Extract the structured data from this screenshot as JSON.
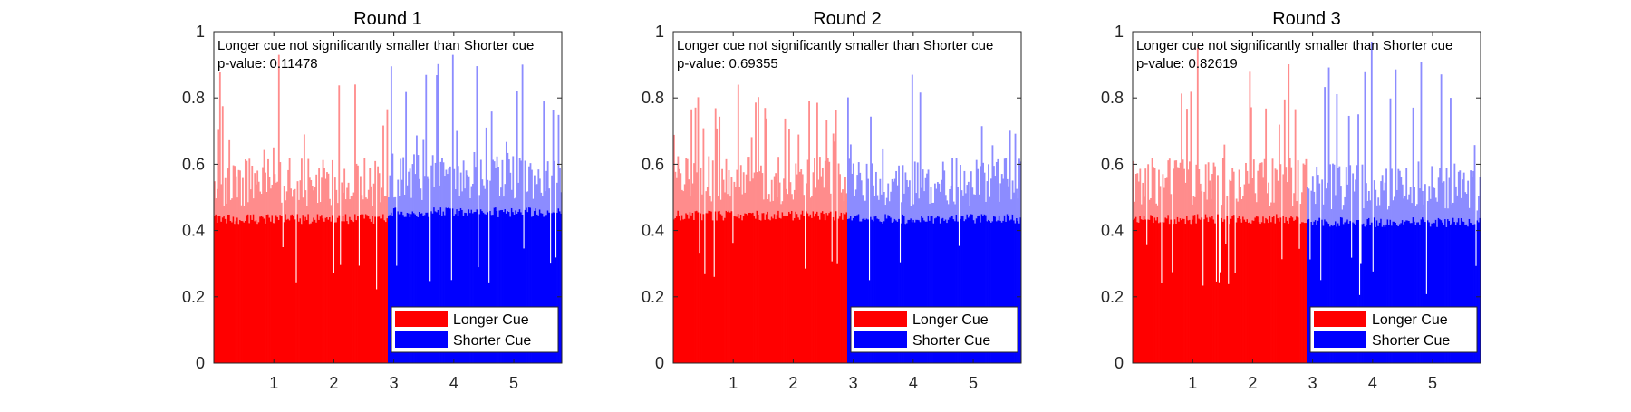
{
  "chart_data": [
    {
      "type": "bar",
      "title": "Round 1",
      "annotation": [
        "Longer cue not significantly smaller than Shorter cue",
        "p-value: 0.11478"
      ],
      "xlabel": "",
      "ylabel": "",
      "xlim": [
        0,
        5.8
      ],
      "ylim": [
        0,
        1
      ],
      "xticks": [
        "1",
        "2",
        "3",
        "4",
        "5"
      ],
      "yticks": [
        "0",
        "0.2",
        "0.4",
        "0.6",
        "0.8",
        "1"
      ],
      "grid": false,
      "legend_position": "bottom-right",
      "series": [
        {
          "name": "Longer Cue",
          "color": "#ff0000",
          "x_range": [
            0,
            2.9
          ],
          "typical": 0.56,
          "peak": 0.93
        },
        {
          "name": "Shorter Cue",
          "color": "#0000ff",
          "x_range": [
            2.9,
            5.8
          ],
          "typical": 0.58,
          "peak": 0.93
        }
      ]
    },
    {
      "type": "bar",
      "title": "Round 2",
      "annotation": [
        "Longer cue not significantly smaller than Shorter cue",
        "p-value: 0.69355"
      ],
      "xlabel": "",
      "ylabel": "",
      "xlim": [
        0,
        5.8
      ],
      "ylim": [
        0,
        1
      ],
      "xticks": [
        "1",
        "2",
        "3",
        "4",
        "5"
      ],
      "yticks": [
        "0",
        "0.2",
        "0.4",
        "0.6",
        "0.8",
        "1"
      ],
      "grid": false,
      "legend_position": "bottom-right",
      "series": [
        {
          "name": "Longer Cue",
          "color": "#ff0000",
          "x_range": [
            0,
            2.9
          ],
          "typical": 0.57,
          "peak": 0.84
        },
        {
          "name": "Shorter Cue",
          "color": "#0000ff",
          "x_range": [
            2.9,
            5.8
          ],
          "typical": 0.56,
          "peak": 0.87
        }
      ]
    },
    {
      "type": "bar",
      "title": "Round 3",
      "annotation": [
        "Longer cue not significantly smaller than Shorter cue",
        "p-value: 0.82619"
      ],
      "xlabel": "",
      "ylabel": "",
      "xlim": [
        0,
        5.8
      ],
      "ylim": [
        0,
        1
      ],
      "xticks": [
        "1",
        "2",
        "3",
        "4",
        "5"
      ],
      "yticks": [
        "0",
        "0.2",
        "0.4",
        "0.6",
        "0.8",
        "1"
      ],
      "grid": false,
      "legend_position": "bottom-right",
      "series": [
        {
          "name": "Longer Cue",
          "color": "#ff0000",
          "x_range": [
            0,
            2.9
          ],
          "typical": 0.56,
          "peak": 0.95
        },
        {
          "name": "Shorter Cue",
          "color": "#0000ff",
          "x_range": [
            2.9,
            5.8
          ],
          "typical": 0.55,
          "peak": 0.97
        }
      ]
    }
  ]
}
